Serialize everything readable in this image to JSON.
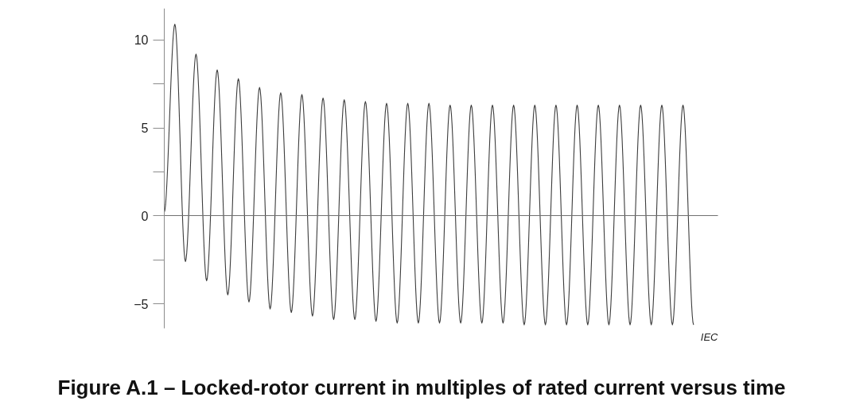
{
  "chart_data": {
    "type": "line",
    "title": "Figure A.1 – Locked-rotor current in multiples of rated current versus time",
    "annotations": [
      "IEC"
    ],
    "categories": [
      null,
      null,
      null,
      null,
      null,
      null,
      null,
      null,
      null,
      null,
      null,
      null,
      null,
      null,
      null,
      null,
      null,
      null,
      null,
      null,
      null,
      null,
      null,
      null,
      null,
      null,
      null,
      null,
      null,
      null,
      null,
      null,
      null,
      null,
      null,
      null,
      null,
      null,
      null,
      null,
      null,
      null,
      null,
      null,
      null,
      null,
      null,
      null,
      null,
      null,
      null
    ],
    "series": [
      {
        "color": "#3c3c3c",
        "values": [
          0.2,
          10.9,
          -2.6,
          9.2,
          -3.7,
          8.3,
          -4.5,
          7.8,
          -4.9,
          7.3,
          -5.3,
          7.0,
          -5.5,
          6.9,
          -5.7,
          6.7,
          -5.9,
          6.6,
          -5.9,
          6.5,
          -6.0,
          6.4,
          -6.1,
          6.4,
          -6.1,
          6.4,
          -6.1,
          6.3,
          -6.1,
          6.3,
          -6.1,
          6.3,
          -6.1,
          6.3,
          -6.2,
          6.3,
          -6.2,
          6.3,
          -6.2,
          6.3,
          -6.2,
          6.3,
          -6.2,
          6.3,
          -6.2,
          6.3,
          -6.2,
          6.3,
          -6.2,
          6.3,
          -6.2
        ]
      }
    ],
    "ylim": [
      -6.4,
      11.8
    ],
    "yticks": [
      {
        "value": -5,
        "label": "−5"
      },
      {
        "value": -2.5,
        "label": null
      },
      0,
      {
        "value": 2.5,
        "label": null
      },
      5,
      {
        "value": 7.5,
        "label": null
      },
      10
    ],
    "tick_labels": "y",
    "line_style": "solid"
  }
}
